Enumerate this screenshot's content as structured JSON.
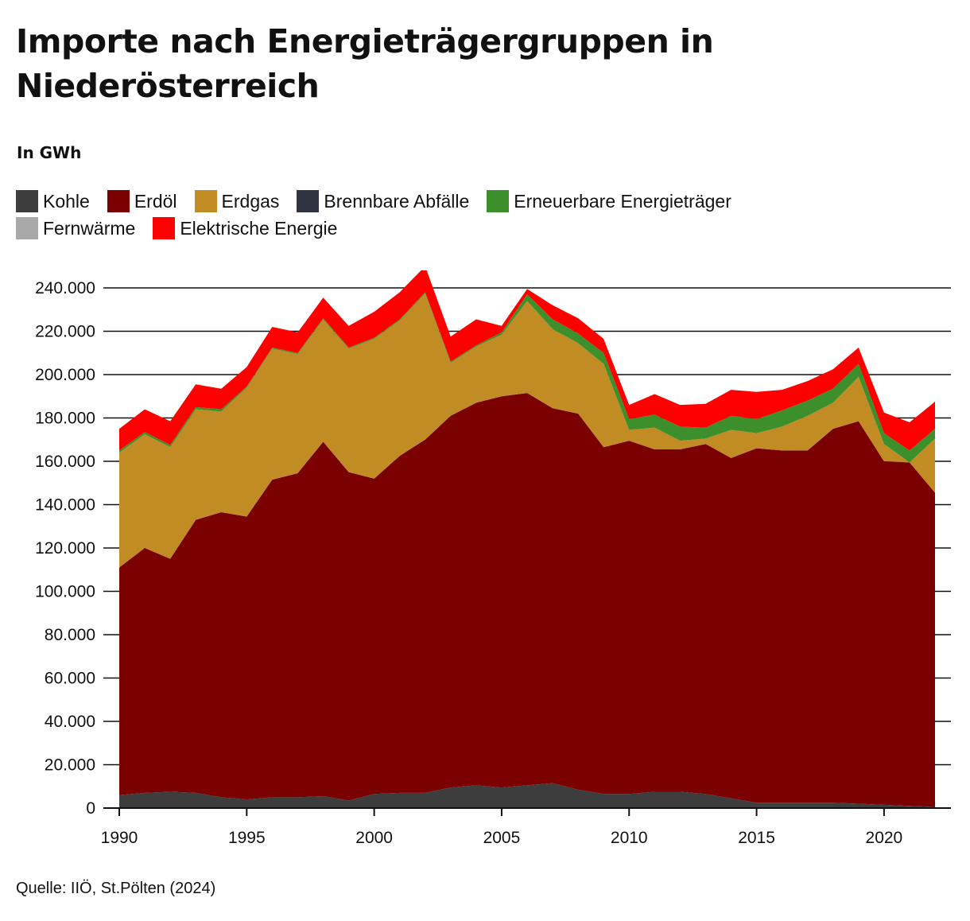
{
  "title": "Importe nach Energieträgergruppen in Niederösterreich",
  "subtitle": "In GWh",
  "source": "Quelle: IIÖ, St.Pölten (2024)",
  "legend": {
    "row1": [
      {
        "name": "Kohle",
        "color": "#3d3d3d"
      },
      {
        "name": "Erdöl",
        "color": "#7b0000"
      },
      {
        "name": "Erdgas",
        "color": "#c08c23"
      },
      {
        "name": "Brennbare Abfälle",
        "color": "#2f3440"
      },
      {
        "name": "Erneuerbare Energieträger",
        "color": "#3d8f2c"
      }
    ],
    "row2": [
      {
        "name": "Fernwärme",
        "color": "#a8a8a8"
      },
      {
        "name": "Elektrische Energie",
        "color": "#ff0000"
      }
    ]
  },
  "chart_data": {
    "type": "area",
    "stacked": true,
    "x": [
      1990,
      1991,
      1992,
      1993,
      1994,
      1995,
      1996,
      1997,
      1998,
      1999,
      2000,
      2001,
      2002,
      2003,
      2004,
      2005,
      2006,
      2007,
      2008,
      2009,
      2010,
      2011,
      2012,
      2013,
      2014,
      2015,
      2016,
      2017,
      2018,
      2019,
      2020,
      2021,
      2022
    ],
    "ylim": [
      0,
      240000
    ],
    "yticks": [
      0,
      20000,
      40000,
      60000,
      80000,
      100000,
      120000,
      140000,
      160000,
      180000,
      200000,
      220000,
      240000
    ],
    "ytick_labels": [
      "0",
      "20.000",
      "40.000",
      "60.000",
      "80.000",
      "100.000",
      "120.000",
      "140.000",
      "160.000",
      "180.000",
      "200.000",
      "220.000",
      "240.000"
    ],
    "xticks": [
      1990,
      1995,
      2000,
      2005,
      2010,
      2015,
      2020
    ],
    "xtick_labels": [
      "1990",
      "1995",
      "2000",
      "2005",
      "2010",
      "2015",
      "2020"
    ],
    "grid": "horizontal",
    "legend_position": "top-left",
    "series": [
      {
        "name": "Kohle",
        "color": "#3d3d3d",
        "values": [
          6000,
          7000,
          7500,
          7000,
          5000,
          4000,
          5000,
          5000,
          5500,
          3500,
          6500,
          7000,
          7000,
          9500,
          10500,
          9500,
          10500,
          11500,
          8500,
          6500,
          6500,
          7500,
          7500,
          6500,
          4500,
          2500,
          2500,
          2500,
          2500,
          2000,
          1500,
          1000,
          500
        ]
      },
      {
        "name": "Erdöl",
        "color": "#7b0000",
        "values": [
          105000,
          113000,
          107500,
          126000,
          131500,
          130500,
          146500,
          149500,
          163500,
          151500,
          145500,
          155500,
          163000,
          171500,
          176500,
          180500,
          181000,
          173000,
          173500,
          160000,
          163000,
          158000,
          158000,
          161500,
          157000,
          163500,
          162500,
          162500,
          172500,
          176500,
          158500,
          158500,
          145000
        ]
      },
      {
        "name": "Erdgas",
        "color": "#c08c23",
        "values": [
          53000,
          52500,
          51500,
          51000,
          46500,
          59500,
          60500,
          55000,
          56500,
          57000,
          64500,
          62500,
          67500,
          24500,
          26000,
          28500,
          42500,
          36500,
          32500,
          38500,
          5000,
          10000,
          4000,
          2500,
          13000,
          7000,
          11000,
          16000,
          12000,
          20500,
          8000,
          0,
          25000
        ]
      },
      {
        "name": "Brennbare Abfälle",
        "color": "#2f3440",
        "values": [
          0,
          0,
          0,
          0,
          0,
          0,
          0,
          0,
          0,
          0,
          0,
          0,
          0,
          0,
          0,
          0,
          0,
          0,
          0,
          0,
          0,
          0,
          0,
          0,
          0,
          0,
          0,
          0,
          0,
          0,
          0,
          0,
          0
        ]
      },
      {
        "name": "Erneuerbare Energieträger",
        "color": "#3d8f2c",
        "values": [
          1000,
          1000,
          1000,
          1000,
          1000,
          500,
          500,
          500,
          500,
          500,
          500,
          500,
          500,
          500,
          500,
          1000,
          3000,
          4500,
          4500,
          5000,
          5000,
          6000,
          6500,
          5000,
          6500,
          6500,
          7500,
          7000,
          6500,
          6000,
          5000,
          5500,
          4500
        ]
      },
      {
        "name": "Fernwärme",
        "color": "#a8a8a8",
        "values": [
          0,
          0,
          0,
          0,
          0,
          0,
          0,
          0,
          0,
          0,
          0,
          0,
          0,
          0,
          0,
          0,
          0,
          0,
          0,
          0,
          0,
          0,
          0,
          0,
          0,
          0,
          0,
          0,
          0,
          0,
          0,
          0,
          0
        ]
      },
      {
        "name": "Elektrische Energie",
        "color": "#ff0000",
        "values": [
          10000,
          10500,
          11000,
          10500,
          9500,
          9000,
          9500,
          9500,
          9500,
          10000,
          12000,
          12500,
          12000,
          11500,
          12000,
          3000,
          2500,
          6500,
          7000,
          6500,
          6500,
          9500,
          10000,
          11000,
          12000,
          12500,
          9500,
          9000,
          9000,
          7500,
          9500,
          13000,
          12500
        ]
      }
    ]
  }
}
